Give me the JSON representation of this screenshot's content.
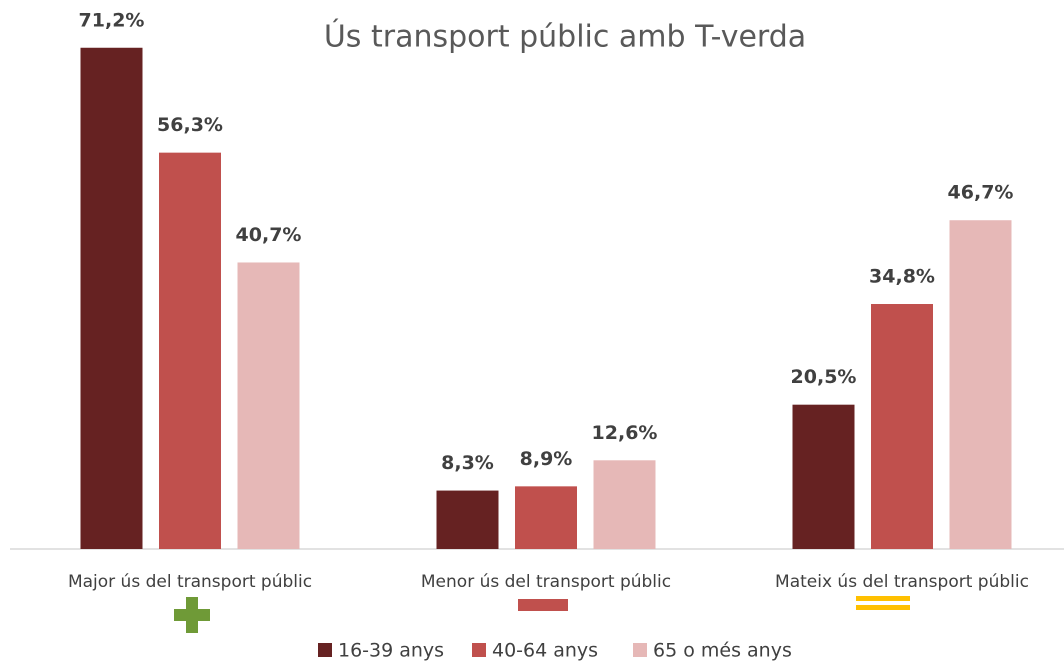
{
  "chart_data": {
    "type": "bar",
    "title": "Ús transport públic amb T-verda",
    "categories": [
      "Major ús del transport públic",
      "Menor ús del transport públic",
      "Mateix ús del transport públic"
    ],
    "series": [
      {
        "name": "16-39 anys",
        "color": "#662222",
        "values": [
          71.2,
          8.3,
          20.5
        ],
        "value_labels": [
          "71,2%",
          "8,3%",
          "20,5%"
        ]
      },
      {
        "name": "40-64 anys",
        "color": "#c0504d",
        "values": [
          56.3,
          8.9,
          34.8
        ],
        "value_labels": [
          "56,3%",
          "8,9%",
          "34,8%"
        ]
      },
      {
        "name": "65 o més anys",
        "color": "#e6b8b7",
        "values": [
          40.7,
          12.6,
          46.7
        ],
        "value_labels": [
          "40,7%",
          "12,6%",
          "46,7%"
        ]
      }
    ],
    "legend": "bottom"
  }
}
